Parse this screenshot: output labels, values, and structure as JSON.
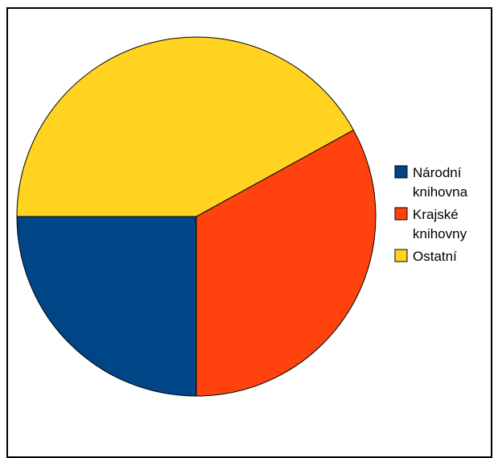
{
  "chart_data": {
    "type": "pie",
    "title": "",
    "slices": [
      {
        "label_lines": [
          "Národní",
          "knihovna"
        ],
        "value": 25.0,
        "color": "#004586"
      },
      {
        "label_lines": [
          "Krajské",
          "knihovny"
        ],
        "value": 33.0,
        "color": "#ff420e"
      },
      {
        "label_lines": [
          "Ostatní"
        ],
        "value": 42.0,
        "color": "#ffd320"
      }
    ],
    "legend": "right",
    "start_angle_deg": 180,
    "direction": "counterclockwise"
  }
}
